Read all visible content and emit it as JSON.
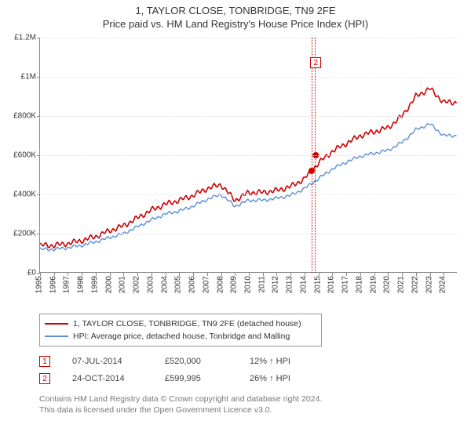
{
  "title1": "1, TAYLOR CLOSE, TONBRIDGE, TN9 2FE",
  "title2": "Price paid vs. HM Land Registry's House Price Index (HPI)",
  "chart": {
    "type": "line",
    "x_years": [
      1995,
      1996,
      1997,
      1998,
      1999,
      2000,
      2001,
      2002,
      2003,
      2004,
      2005,
      2006,
      2007,
      2008,
      2009,
      2010,
      2011,
      2012,
      2013,
      2014,
      2015,
      2016,
      2017,
      2018,
      2019,
      2020,
      2021,
      2022,
      2023,
      2024
    ],
    "x_range": [
      1995,
      2025
    ],
    "yticks": [
      0,
      200000,
      400000,
      600000,
      800000,
      1000000,
      1200000
    ],
    "ylabels": [
      "£0",
      "£200K",
      "£400K",
      "£600K",
      "£800K",
      "£1M",
      "£1.2M"
    ],
    "ylim": [
      0,
      1200000
    ],
    "grid_color": "#e2e2e2",
    "background_color": "#ffffff",
    "axis_color": "#888888",
    "title_fontsize": 13,
    "tick_fontsize": 10,
    "series": [
      {
        "name": "price_paid",
        "label": "1, TAYLOR CLOSE, TONBRIDGE, TN9 2FE (detached house)",
        "color": "#cc0000",
        "width": 1.6,
        "y_by_year": [
          140000,
          140000,
          150000,
          165000,
          185000,
          215000,
          240000,
          280000,
          320000,
          350000,
          370000,
          395000,
          430000,
          450000,
          370000,
          410000,
          410000,
          420000,
          440000,
          480000,
          560000,
          620000,
          660000,
          700000,
          720000,
          740000,
          800000,
          900000,
          940000,
          870000
        ]
      },
      {
        "name": "hpi",
        "label": "HPI: Average price, detached house, Tonbridge and Malling",
        "color": "#5b8fd6",
        "width": 1.4,
        "y_by_year": [
          120000,
          120000,
          128000,
          140000,
          158000,
          180000,
          200000,
          235000,
          270000,
          300000,
          315000,
          340000,
          375000,
          400000,
          340000,
          370000,
          370000,
          380000,
          395000,
          430000,
          480000,
          530000,
          565000,
          595000,
          610000,
          625000,
          665000,
          730000,
          760000,
          700000
        ]
      }
    ],
    "sale_markers": [
      {
        "label": "1",
        "x": 2014.51,
        "y": 520000
      },
      {
        "label": "2",
        "x": 2014.81,
        "y": 599995
      }
    ],
    "highlight_band": {
      "from": 2014.51,
      "to": 2014.81,
      "color": "#cc0000"
    }
  },
  "legend": {
    "items": [
      {
        "color": "#cc0000",
        "label": "1, TAYLOR CLOSE, TONBRIDGE, TN9 2FE (detached house)"
      },
      {
        "color": "#5b8fd6",
        "label": "HPI: Average price, detached house, Tonbridge and Malling"
      }
    ]
  },
  "sales": [
    {
      "n": "1",
      "date": "07-JUL-2014",
      "price": "£520,000",
      "delta": "12% ↑ HPI"
    },
    {
      "n": "2",
      "date": "24-OCT-2014",
      "price": "£599,995",
      "delta": "26% ↑ HPI"
    }
  ],
  "footer": {
    "line1": "Contains HM Land Registry data © Crown copyright and database right 2024.",
    "line2": "This data is licensed under the Open Government Licence v3.0."
  }
}
